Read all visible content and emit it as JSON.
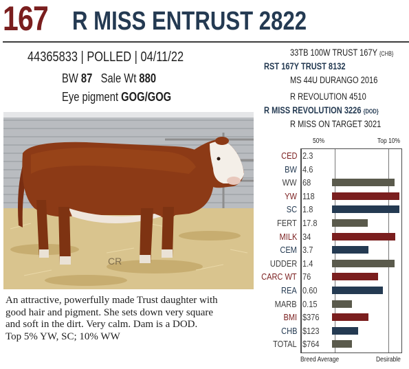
{
  "header": {
    "lot_number": "167",
    "name": "R MISS ENTRUST 2822"
  },
  "identity": {
    "registration": "44365833",
    "sep1": "|",
    "horned_status": "POLLED",
    "sep2": "|",
    "birth_date": "04/11/22"
  },
  "weights": {
    "bw_label": "BW",
    "bw_value": "87",
    "sale_label": "Sale Wt",
    "sale_value": "880"
  },
  "eye_pigment": {
    "label": "Eye pigment",
    "value": "GOG/GOG"
  },
  "pedigree": {
    "sire_sire": "33TB 100W TRUST 167Y",
    "sire_sire_suffix": "{CHB}",
    "sire": "RST 167Y TRUST 8132",
    "sire_dam": "MS 44U DURANGO 2016",
    "dam_sire": "R REVOLUTION 4510",
    "dam": "R MISS REVOLUTION 3226",
    "dam_suffix": "{DOD}",
    "dam_dam": "R MISS ON TARGET 3021"
  },
  "photo": {
    "watermark": "CR"
  },
  "description": {
    "lines": [
      "An attractive, powerfully made Trust daughter with",
      "good hair and pigment. She sets down very square",
      "and soft in the dirt. Very calm. Dam is a DOD.",
      "Top 5% YW, SC; 10% WW"
    ]
  },
  "chart_data": {
    "type": "bar",
    "top_labels": [
      "50%",
      "Top 10%"
    ],
    "bottom_labels": [
      "Breed Average",
      "Desirable"
    ],
    "colors": {
      "red": "#7a1e1e",
      "blue": "#243a52",
      "gray": "#5a5a4c"
    },
    "rows": [
      {
        "trait": "CED",
        "value": "2.3",
        "color": "red",
        "bar": 0
      },
      {
        "trait": "BW",
        "value": "4.6",
        "color": "blue",
        "bar": 0
      },
      {
        "trait": "WW",
        "value": "68",
        "color": "gray",
        "bar": 0.91
      },
      {
        "trait": "YW",
        "value": "118",
        "color": "red",
        "bar": 0.98
      },
      {
        "trait": "SC",
        "value": "1.8",
        "color": "blue",
        "bar": 0.98
      },
      {
        "trait": "FERT",
        "value": "17.8",
        "color": "gray",
        "bar": 0.52
      },
      {
        "trait": "MILK",
        "value": "34",
        "color": "red",
        "bar": 0.92
      },
      {
        "trait": "CEM",
        "value": "3.7",
        "color": "blue",
        "bar": 0.53
      },
      {
        "trait": "UDDER",
        "value": "1.4",
        "color": "gray",
        "bar": 0.91
      },
      {
        "trait": "CARC WT",
        "value": "76",
        "color": "red",
        "bar": 0.67
      },
      {
        "trait": "REA",
        "value": "0.60",
        "color": "blue",
        "bar": 0.74
      },
      {
        "trait": "MARB",
        "value": "0.15",
        "color": "gray",
        "bar": 0.29
      },
      {
        "trait": "BMI",
        "value": "$376",
        "color": "red",
        "bar": 0.53
      },
      {
        "trait": "CHB",
        "value": "$123",
        "color": "blue",
        "bar": 0.38
      },
      {
        "trait": "TOTAL",
        "value": "$764",
        "color": "gray",
        "bar": 0.29
      }
    ]
  }
}
